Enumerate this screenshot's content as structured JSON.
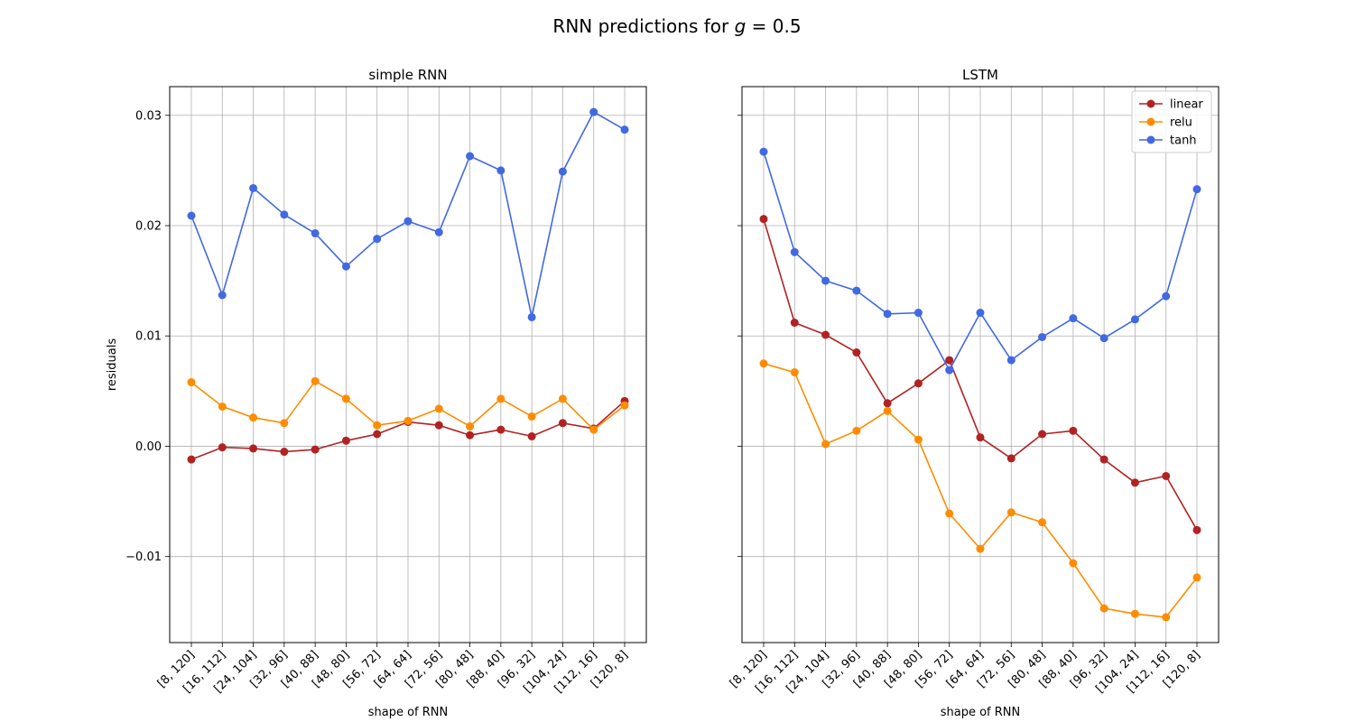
{
  "figure": {
    "suptitle_prefix": "RNN predictions for ",
    "suptitle_var": "g",
    "suptitle_value": " = 0.5"
  },
  "chart_data": [
    {
      "type": "line",
      "title": "simple RNN",
      "xlabel": "shape of RNN",
      "ylabel": "residuals",
      "grid": true,
      "ylim": [
        -0.0178,
        0.0326
      ],
      "yticks": [
        -0.01,
        0.0,
        0.01,
        0.02,
        0.03
      ],
      "ytick_labels": [
        "−0.01",
        "0.00",
        "0.01",
        "0.02",
        "0.03"
      ],
      "categories": [
        "[8, 120]",
        "[16, 112]",
        "[24, 104]",
        "[32, 96]",
        "[40, 88]",
        "[48, 80]",
        "[56, 72]",
        "[64, 64]",
        "[72, 56]",
        "[80, 48]",
        "[88, 40]",
        "[96, 32]",
        "[104, 24]",
        "[112, 16]",
        "[120, 8]"
      ],
      "series": [
        {
          "name": "linear",
          "color": "#b22222",
          "values": [
            -0.0012,
            -0.0001,
            -0.0002,
            -0.0005,
            -0.0003,
            0.0005,
            0.0011,
            0.0022,
            0.0019,
            0.001,
            0.0015,
            0.0009,
            0.0021,
            0.0016,
            0.0041
          ]
        },
        {
          "name": "relu",
          "color": "#ff8c00",
          "values": [
            0.0058,
            0.0036,
            0.0026,
            0.0021,
            0.0059,
            0.0043,
            0.0019,
            0.0023,
            0.0034,
            0.0018,
            0.0043,
            0.0027,
            0.0043,
            0.0015,
            0.0037
          ]
        },
        {
          "name": "tanh",
          "color": "#4169e1",
          "values": [
            0.0209,
            0.0137,
            0.0234,
            0.021,
            0.0193,
            0.0163,
            0.0188,
            0.0204,
            0.0194,
            0.0263,
            0.025,
            0.0117,
            0.0249,
            0.0303,
            0.0287
          ]
        }
      ]
    },
    {
      "type": "line",
      "title": "LSTM",
      "xlabel": "shape of RNN",
      "ylabel": "",
      "grid": true,
      "legend": "top-right",
      "ylim": [
        -0.0178,
        0.0326
      ],
      "yticks": [
        -0.01,
        0.0,
        0.01,
        0.02,
        0.03
      ],
      "categories": [
        "[8, 120]",
        "[16, 112]",
        "[24, 104]",
        "[32, 96]",
        "[40, 88]",
        "[48, 80]",
        "[56, 72]",
        "[64, 64]",
        "[72, 56]",
        "[80, 48]",
        "[88, 40]",
        "[96, 32]",
        "[104, 24]",
        "[112, 16]",
        "[120, 8]"
      ],
      "series": [
        {
          "name": "linear",
          "color": "#b22222",
          "values": [
            0.0206,
            0.0112,
            0.0101,
            0.0085,
            0.0039,
            0.0057,
            0.0078,
            0.0008,
            -0.0011,
            0.0011,
            0.0014,
            -0.0012,
            -0.0033,
            -0.0027,
            -0.0076
          ]
        },
        {
          "name": "relu",
          "color": "#ff8c00",
          "values": [
            0.0075,
            0.0067,
            0.0002,
            0.0014,
            0.0032,
            0.0006,
            -0.0061,
            -0.0093,
            -0.006,
            -0.0069,
            -0.0106,
            -0.0147,
            -0.0152,
            -0.0155,
            -0.0119
          ]
        },
        {
          "name": "tanh",
          "color": "#4169e1",
          "values": [
            0.0267,
            0.0176,
            0.015,
            0.0141,
            0.012,
            0.0121,
            0.0069,
            0.0121,
            0.0078,
            0.0099,
            0.0116,
            0.0098,
            0.0115,
            0.0136,
            0.0233
          ]
        }
      ]
    }
  ]
}
